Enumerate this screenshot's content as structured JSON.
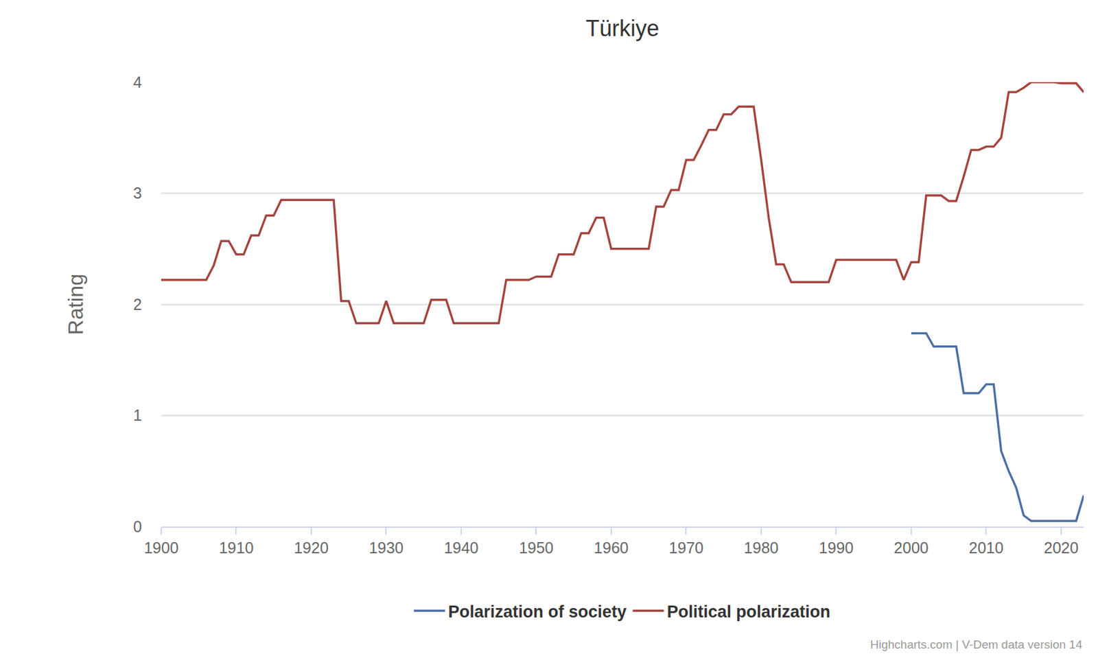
{
  "chart_data": {
    "type": "line",
    "title": "Türkiye",
    "y_label": "Rating",
    "annotations": [
      "Highcharts.com | V-Dem data version 14"
    ],
    "x": [
      1900,
      1901,
      1902,
      1903,
      1904,
      1905,
      1906,
      1907,
      1908,
      1909,
      1910,
      1911,
      1912,
      1913,
      1914,
      1915,
      1916,
      1917,
      1918,
      1919,
      1920,
      1921,
      1922,
      1923,
      1924,
      1925,
      1926,
      1927,
      1928,
      1929,
      1930,
      1931,
      1932,
      1933,
      1934,
      1935,
      1936,
      1937,
      1938,
      1939,
      1940,
      1941,
      1942,
      1943,
      1944,
      1945,
      1946,
      1947,
      1948,
      1949,
      1950,
      1951,
      1952,
      1953,
      1954,
      1955,
      1956,
      1957,
      1958,
      1959,
      1960,
      1961,
      1962,
      1963,
      1964,
      1965,
      1966,
      1967,
      1968,
      1969,
      1970,
      1971,
      1972,
      1973,
      1974,
      1975,
      1976,
      1977,
      1978,
      1979,
      1980,
      1981,
      1982,
      1983,
      1984,
      1985,
      1986,
      1987,
      1988,
      1989,
      1990,
      1991,
      1992,
      1993,
      1994,
      1995,
      1996,
      1997,
      1998,
      1999,
      2000,
      2001,
      2002,
      2003,
      2004,
      2005,
      2006,
      2007,
      2008,
      2009,
      2010,
      2011,
      2012,
      2013,
      2014,
      2015,
      2016,
      2017,
      2018,
      2019,
      2020,
      2021,
      2022,
      2023
    ],
    "series": [
      {
        "name": "Polarization of society",
        "color": "#4b6fa6",
        "values": [
          null,
          null,
          null,
          null,
          null,
          null,
          null,
          null,
          null,
          null,
          null,
          null,
          null,
          null,
          null,
          null,
          null,
          null,
          null,
          null,
          null,
          null,
          null,
          null,
          null,
          null,
          null,
          null,
          null,
          null,
          null,
          null,
          null,
          null,
          null,
          null,
          null,
          null,
          null,
          null,
          null,
          null,
          null,
          null,
          null,
          null,
          null,
          null,
          null,
          null,
          null,
          null,
          null,
          null,
          null,
          null,
          null,
          null,
          null,
          null,
          null,
          null,
          null,
          null,
          null,
          null,
          null,
          null,
          null,
          null,
          null,
          null,
          null,
          null,
          null,
          null,
          null,
          null,
          null,
          null,
          null,
          null,
          null,
          null,
          null,
          null,
          null,
          null,
          null,
          null,
          null,
          null,
          null,
          null,
          null,
          null,
          null,
          null,
          null,
          null,
          1.74,
          1.74,
          1.74,
          1.62,
          1.62,
          1.62,
          1.62,
          1.2,
          1.2,
          1.2,
          1.28,
          1.28,
          0.68,
          0.5,
          0.35,
          0.1,
          0.05,
          0.05,
          0.05,
          0.05,
          0.05,
          0.05,
          0.05,
          0.28
        ]
      },
      {
        "name": "Political polarization",
        "color": "#a5443f",
        "values": [
          2.22,
          2.22,
          2.22,
          2.22,
          2.22,
          2.22,
          2.22,
          2.35,
          2.57,
          2.57,
          2.45,
          2.45,
          2.62,
          2.62,
          2.8,
          2.8,
          2.94,
          2.94,
          2.94,
          2.94,
          2.94,
          2.94,
          2.94,
          2.94,
          2.03,
          2.03,
          1.83,
          1.83,
          1.83,
          1.83,
          2.03,
          1.83,
          1.83,
          1.83,
          1.83,
          1.83,
          2.04,
          2.04,
          2.04,
          1.83,
          1.83,
          1.83,
          1.83,
          1.83,
          1.83,
          1.83,
          2.22,
          2.22,
          2.22,
          2.22,
          2.25,
          2.25,
          2.25,
          2.45,
          2.45,
          2.45,
          2.64,
          2.64,
          2.78,
          2.78,
          2.5,
          2.5,
          2.5,
          2.5,
          2.5,
          2.5,
          2.88,
          2.88,
          3.03,
          3.03,
          3.3,
          3.3,
          3.43,
          3.57,
          3.57,
          3.71,
          3.71,
          3.78,
          3.78,
          3.78,
          3.3,
          2.78,
          2.36,
          2.36,
          2.2,
          2.2,
          2.2,
          2.2,
          2.2,
          2.2,
          2.4,
          2.4,
          2.4,
          2.4,
          2.4,
          2.4,
          2.4,
          2.4,
          2.4,
          2.22,
          2.38,
          2.38,
          2.98,
          2.98,
          2.98,
          2.93,
          2.93,
          3.15,
          3.39,
          3.39,
          3.42,
          3.42,
          3.5,
          3.91,
          3.91,
          3.95,
          4.0,
          4.0,
          4.0,
          4.0,
          3.99,
          3.99,
          3.99,
          3.91
        ]
      }
    ],
    "xlim": [
      1900,
      2023
    ],
    "xticks": [
      1900,
      1910,
      1920,
      1930,
      1940,
      1950,
      1960,
      1970,
      1980,
      1990,
      2000,
      2010,
      2020
    ],
    "ylim": [
      0,
      4
    ],
    "yticks": [
      0,
      1,
      2,
      3,
      4
    ],
    "grid": true,
    "legend": "bottom"
  }
}
